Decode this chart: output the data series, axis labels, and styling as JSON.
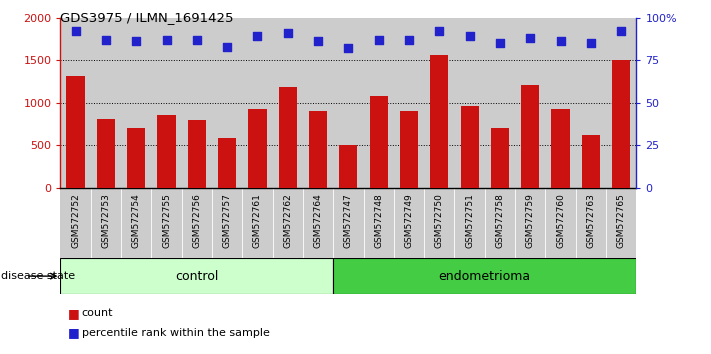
{
  "title": "GDS3975 / ILMN_1691425",
  "samples": [
    "GSM572752",
    "GSM572753",
    "GSM572754",
    "GSM572755",
    "GSM572756",
    "GSM572757",
    "GSM572761",
    "GSM572762",
    "GSM572764",
    "GSM572747",
    "GSM572748",
    "GSM572749",
    "GSM572750",
    "GSM572751",
    "GSM572758",
    "GSM572759",
    "GSM572760",
    "GSM572763",
    "GSM572765"
  ],
  "counts": [
    1310,
    810,
    700,
    850,
    800,
    580,
    920,
    1190,
    900,
    500,
    1080,
    900,
    1560,
    960,
    700,
    1210,
    920,
    620,
    1500
  ],
  "percentiles": [
    92,
    87,
    86,
    87,
    87,
    83,
    89,
    91,
    86,
    82,
    87,
    87,
    92,
    89,
    85,
    88,
    86,
    85,
    92
  ],
  "bar_color": "#cc1111",
  "dot_color": "#2222cc",
  "ylim_left": [
    0,
    2000
  ],
  "ylim_right": [
    0,
    100
  ],
  "yticks_left": [
    0,
    500,
    1000,
    1500,
    2000
  ],
  "yticks_right": [
    0,
    25,
    50,
    75,
    100
  ],
  "ytick_labels_left": [
    "0",
    "500",
    "1000",
    "1500",
    "2000"
  ],
  "ytick_labels_right": [
    "0",
    "25",
    "50",
    "75",
    "100%"
  ],
  "control_count": 9,
  "endometrioma_count": 10,
  "control_label": "control",
  "endometrioma_label": "endometrioma",
  "disease_label": "disease state",
  "legend_count_label": "count",
  "legend_percentile_label": "percentile rank within the sample",
  "control_color": "#ccffcc",
  "endometrioma_color": "#44cc44",
  "xlabel_bg_color": "#cccccc",
  "grid_color": "#000000",
  "gridline_ticks": [
    500,
    1000,
    1500
  ]
}
